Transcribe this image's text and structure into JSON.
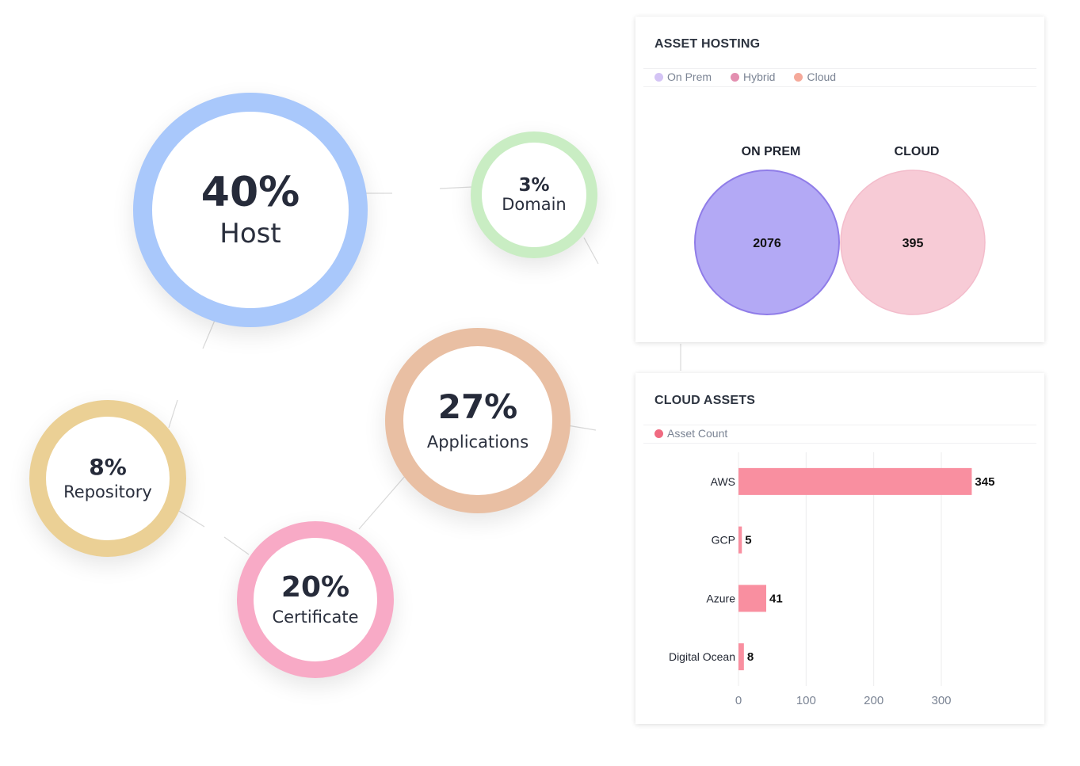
{
  "bubbles": [
    {
      "id": "host",
      "pct": "40%",
      "label": "Host",
      "color": "#a9c8fb"
    },
    {
      "id": "domain",
      "pct": "3%",
      "label": "Domain",
      "color": "#c9edc3"
    },
    {
      "id": "applications",
      "pct": "27%",
      "label": "Applications",
      "color": "#e9bfa3"
    },
    {
      "id": "repository",
      "pct": "8%",
      "label": "Repository",
      "color": "#ebd095"
    },
    {
      "id": "certificate",
      "pct": "20%",
      "label": "Certificate",
      "color": "#f8aac6"
    }
  ],
  "asset_hosting": {
    "title": "ASSET HOSTING",
    "legend": [
      {
        "label": "On Prem",
        "color": "#d4c4f5"
      },
      {
        "label": "Hybrid",
        "color": "#e38fb0"
      },
      {
        "label": "Cloud",
        "color": "#f5a99a"
      }
    ]
  },
  "cloud_assets": {
    "title": "CLOUD ASSETS",
    "legend": [
      {
        "label": "Asset Count",
        "color": "#f06b81"
      }
    ]
  },
  "chart_data": [
    {
      "type": "venn",
      "title": "ASSET HOSTING",
      "sets": [
        {
          "name": "ON PREM",
          "value": 2076,
          "color": "#b3a9f5",
          "stroke": "#8f7ce8"
        },
        {
          "name": "CLOUD",
          "value": 395,
          "color": "#f7cbd6",
          "stroke": "#f3bccb"
        }
      ]
    },
    {
      "type": "bar",
      "orientation": "horizontal",
      "title": "CLOUD ASSETS",
      "categories": [
        "AWS",
        "GCP",
        "Azure",
        "Digital Ocean"
      ],
      "series": [
        {
          "name": "Asset Count",
          "values": [
            345,
            5,
            41,
            8
          ],
          "color": "#f98fa0"
        }
      ],
      "xlim": [
        0,
        375
      ],
      "xticks": [
        0,
        100,
        200,
        300
      ],
      "grid": true
    }
  ]
}
